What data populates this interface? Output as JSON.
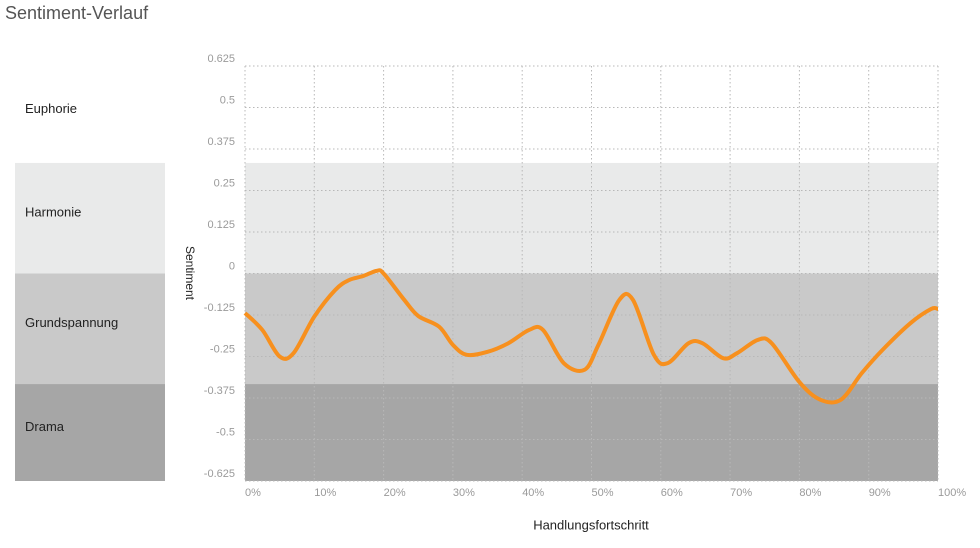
{
  "chart_data": {
    "type": "line",
    "title": "Sentiment-Verlauf",
    "xlabel": "Handlungsfortschritt",
    "ylabel": "Sentiment",
    "xlim": [
      0,
      100
    ],
    "xticks": [
      {
        "value": 0,
        "label": "0%"
      },
      {
        "value": 10,
        "label": "10%"
      },
      {
        "value": 20,
        "label": "20%"
      },
      {
        "value": 30,
        "label": "30%"
      },
      {
        "value": 40,
        "label": "40%"
      },
      {
        "value": 50,
        "label": "50%"
      },
      {
        "value": 60,
        "label": "60%"
      },
      {
        "value": 70,
        "label": "70%"
      },
      {
        "value": 80,
        "label": "80%"
      },
      {
        "value": 90,
        "label": "90%"
      },
      {
        "value": 100,
        "label": "100%"
      }
    ],
    "ylim": [
      -0.625,
      0.625
    ],
    "yticks": [
      0.625,
      0.5,
      0.375,
      0.25,
      0.125,
      0,
      -0.125,
      -0.25,
      -0.375,
      -0.5,
      -0.625
    ],
    "grid": true,
    "bands": [
      {
        "label": "Euphorie",
        "from": 0.333,
        "to": 0.625,
        "color": "#ffffff"
      },
      {
        "label": "Harmonie",
        "from": 0,
        "to": 0.333,
        "color": "#e9eaea"
      },
      {
        "label": "Grundspannung",
        "from": -0.333,
        "to": 0,
        "color": "#c9c9c9"
      },
      {
        "label": "Drama",
        "from": -0.625,
        "to": -0.333,
        "color": "#a6a6a6"
      }
    ],
    "series": [
      {
        "color": "#f7901e",
        "x": [
          0,
          2.5,
          5,
          7,
          10,
          13,
          15,
          17,
          19,
          20,
          23,
          25,
          28,
          30,
          32,
          35,
          38,
          41,
          43,
          46,
          49,
          51,
          54,
          56,
          59,
          61,
          64,
          66,
          69,
          71,
          74,
          76,
          80,
          83,
          86,
          89,
          92,
          96,
          99,
          100
        ],
        "values": [
          -0.119,
          -0.17,
          -0.25,
          -0.24,
          -0.13,
          -0.05,
          -0.02,
          -0.008,
          0.008,
          0,
          -0.08,
          -0.128,
          -0.16,
          -0.215,
          -0.245,
          -0.236,
          -0.21,
          -0.17,
          -0.17,
          -0.27,
          -0.29,
          -0.215,
          -0.08,
          -0.08,
          -0.245,
          -0.27,
          -0.21,
          -0.21,
          -0.255,
          -0.24,
          -0.2,
          -0.21,
          -0.327,
          -0.38,
          -0.38,
          -0.3,
          -0.23,
          -0.15,
          -0.107,
          -0.107
        ]
      }
    ]
  }
}
